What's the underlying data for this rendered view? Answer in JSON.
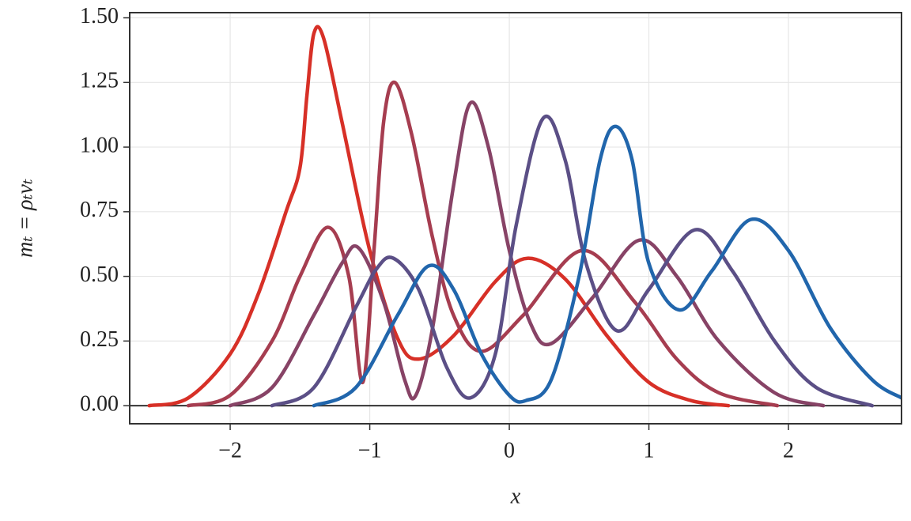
{
  "chart_data": {
    "type": "line",
    "xlabel": "x",
    "ylabel": "mₜ = ρₜvₜ",
    "xlim": [
      -2.72,
      2.81
    ],
    "ylim": [
      -0.07,
      1.52
    ],
    "xticks": [
      {
        "value": -2,
        "label": "−2"
      },
      {
        "value": -1,
        "label": "−1"
      },
      0,
      1,
      2
    ],
    "yticks": [
      {
        "value": 0,
        "label": "0.00"
      },
      {
        "value": 0.25,
        "label": "0.25"
      },
      {
        "value": 0.5,
        "label": "0.50"
      },
      {
        "value": 0.75,
        "label": "0.75"
      },
      {
        "value": 1.0,
        "label": "1.00"
      },
      {
        "value": 1.25,
        "label": "1.25"
      },
      {
        "value": 1.5,
        "label": "1.50"
      }
    ],
    "grid": true,
    "zero_line": true,
    "series": [
      {
        "color": "#d73027",
        "x": [
          -2.58,
          -2.3,
          -2.0,
          -1.8,
          -1.6,
          -1.5,
          -1.45,
          -1.4,
          -1.33,
          -1.2,
          -1.0,
          -0.8,
          -0.65,
          -0.4,
          -0.1,
          0.13,
          0.4,
          0.7,
          1.0,
          1.3,
          1.57
        ],
        "values": [
          0.0,
          0.03,
          0.2,
          0.43,
          0.75,
          0.92,
          1.2,
          1.44,
          1.42,
          1.1,
          0.6,
          0.26,
          0.18,
          0.27,
          0.48,
          0.57,
          0.49,
          0.27,
          0.09,
          0.02,
          0.0
        ]
      },
      {
        "color": "#a63d50",
        "x": [
          -2.3,
          -2.0,
          -1.7,
          -1.5,
          -1.3,
          -1.15,
          -1.05,
          -0.97,
          -0.9,
          -0.82,
          -0.7,
          -0.55,
          -0.4,
          -0.2,
          0.1,
          0.52,
          0.9,
          1.2,
          1.5,
          1.92
        ],
        "values": [
          0.0,
          0.04,
          0.25,
          0.5,
          0.69,
          0.5,
          0.09,
          0.6,
          1.1,
          1.25,
          1.05,
          0.65,
          0.35,
          0.21,
          0.35,
          0.6,
          0.4,
          0.18,
          0.05,
          0.0
        ]
      },
      {
        "color": "#874366",
        "x": [
          -2.0,
          -1.7,
          -1.4,
          -1.2,
          -1.08,
          -0.9,
          -0.75,
          -0.67,
          -0.55,
          -0.4,
          -0.28,
          -0.15,
          0.0,
          0.15,
          0.3,
          0.6,
          0.93,
          1.2,
          1.5,
          1.9,
          2.25
        ],
        "values": [
          0.0,
          0.07,
          0.35,
          0.55,
          0.61,
          0.4,
          0.1,
          0.04,
          0.3,
          0.85,
          1.17,
          1.0,
          0.6,
          0.32,
          0.24,
          0.42,
          0.64,
          0.5,
          0.25,
          0.05,
          0.0
        ]
      },
      {
        "color": "#5b4f86",
        "x": [
          -1.7,
          -1.4,
          -1.1,
          -0.95,
          -0.83,
          -0.65,
          -0.45,
          -0.28,
          -0.1,
          0.05,
          0.24,
          0.4,
          0.55,
          0.77,
          1.0,
          1.33,
          1.6,
          1.9,
          2.2,
          2.6
        ],
        "values": [
          0.0,
          0.07,
          0.38,
          0.53,
          0.57,
          0.45,
          0.15,
          0.03,
          0.2,
          0.7,
          1.11,
          0.95,
          0.55,
          0.29,
          0.45,
          0.68,
          0.52,
          0.25,
          0.07,
          0.0
        ]
      },
      {
        "color": "#2166ac",
        "x": [
          -1.4,
          -1.1,
          -0.8,
          -0.58,
          -0.4,
          -0.2,
          0.0,
          0.12,
          0.3,
          0.5,
          0.65,
          0.76,
          0.88,
          1.0,
          1.22,
          1.45,
          1.73,
          2.0,
          2.3,
          2.6,
          2.81
        ],
        "values": [
          0.0,
          0.07,
          0.35,
          0.54,
          0.45,
          0.2,
          0.04,
          0.02,
          0.1,
          0.5,
          0.95,
          1.08,
          0.95,
          0.55,
          0.37,
          0.52,
          0.72,
          0.6,
          0.3,
          0.1,
          0.03
        ]
      }
    ]
  }
}
